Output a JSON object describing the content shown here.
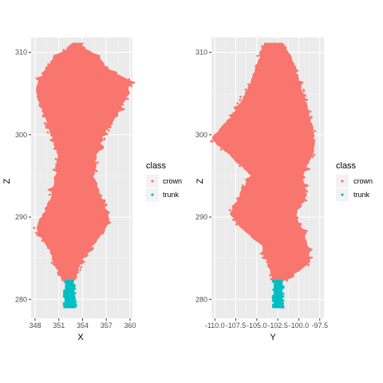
{
  "colors": {
    "panel_bg": "#EBEBEB",
    "grid_major": "#FFFFFF",
    "grid_minor": "#F5F5F5",
    "crown": "#F8766D",
    "trunk": "#00BFC4",
    "tick_text": "#4D4D4D"
  },
  "chart_data": [
    {
      "type": "scatter",
      "xlabel": "X",
      "ylabel": "Z",
      "xlim": [
        347.5,
        360.3
      ],
      "ylim": [
        277.7,
        311.8
      ],
      "xticks": [
        348,
        351,
        354,
        357,
        360
      ],
      "xtick_labels": [
        "348",
        "351",
        "354",
        "357",
        "360"
      ],
      "yticks": [
        280,
        290,
        300,
        310
      ],
      "ytick_labels": [
        "280",
        "290",
        "300",
        "310"
      ],
      "grid": true,
      "legend": "right",
      "series": [
        {
          "name": "crown",
          "profile": [
            [
              282.3,
              351.6,
              352.9
            ],
            [
              284.5,
              350.6,
              353.6
            ],
            [
              286.5,
              349.7,
              355.1
            ],
            [
              288.5,
              348.3,
              356.7
            ],
            [
              290.0,
              349.0,
              357.2
            ],
            [
              292.5,
              350.2,
              356.2
            ],
            [
              295.0,
              350.8,
              355.2
            ],
            [
              297.5,
              351.0,
              355.6
            ],
            [
              300.0,
              350.2,
              356.5
            ],
            [
              302.5,
              349.3,
              358.3
            ],
            [
              304.5,
              348.4,
              359.4
            ],
            [
              306.5,
              348.6,
              359.9
            ],
            [
              308.0,
              349.5,
              357.0
            ],
            [
              309.5,
              350.8,
              355.8
            ],
            [
              310.5,
              352.3,
              354.0
            ],
            [
              311.1,
              352.9,
              353.3
            ]
          ]
        },
        {
          "name": "trunk",
          "profile": [
            [
              279.0,
              351.8,
              353.0
            ],
            [
              282.3,
              351.9,
              352.8
            ]
          ]
        }
      ]
    },
    {
      "type": "scatter",
      "xlabel": "Y",
      "ylabel": "Z",
      "xlim": [
        -110.4,
        -97.0
      ],
      "ylim": [
        277.7,
        311.8
      ],
      "xticks": [
        -110.0,
        -107.5,
        -105.0,
        -102.5,
        -100.0,
        -97.5
      ],
      "xtick_labels": [
        "-110.0",
        "-107.5",
        "-105.0",
        "-102.5",
        "-100.0",
        "-97.5"
      ],
      "yticks": [
        280,
        290,
        300,
        310
      ],
      "ytick_labels": [
        "280",
        "290",
        "300",
        "310"
      ],
      "grid": true,
      "legend": "right",
      "series": [
        {
          "name": "crown",
          "profile": [
            [
              282.3,
              -102.9,
              -101.9
            ],
            [
              284.5,
              -103.5,
              -98.8
            ],
            [
              286.5,
              -104.2,
              -99.0
            ],
            [
              288.5,
              -106.5,
              -99.8
            ],
            [
              290.5,
              -108.0,
              -100.5
            ],
            [
              292.5,
              -107.0,
              -99.2
            ],
            [
              295.0,
              -105.5,
              -99.8
            ],
            [
              297.5,
              -108.0,
              -98.5
            ],
            [
              299.5,
              -110.3,
              -98.3
            ],
            [
              302.0,
              -108.0,
              -98.8
            ],
            [
              304.5,
              -106.5,
              -99.5
            ],
            [
              307.0,
              -105.3,
              -100.3
            ],
            [
              309.5,
              -104.5,
              -101.0
            ],
            [
              311.1,
              -104.0,
              -102.0
            ]
          ]
        },
        {
          "name": "trunk",
          "profile": [
            [
              279.0,
              -102.9,
              -102.0
            ],
            [
              282.3,
              -102.9,
              -102.0
            ]
          ]
        }
      ]
    }
  ],
  "legend": {
    "title": "class",
    "items": [
      {
        "label": "crown",
        "color": "#F8766D"
      },
      {
        "label": "trunk",
        "color": "#00BFC4"
      }
    ]
  }
}
